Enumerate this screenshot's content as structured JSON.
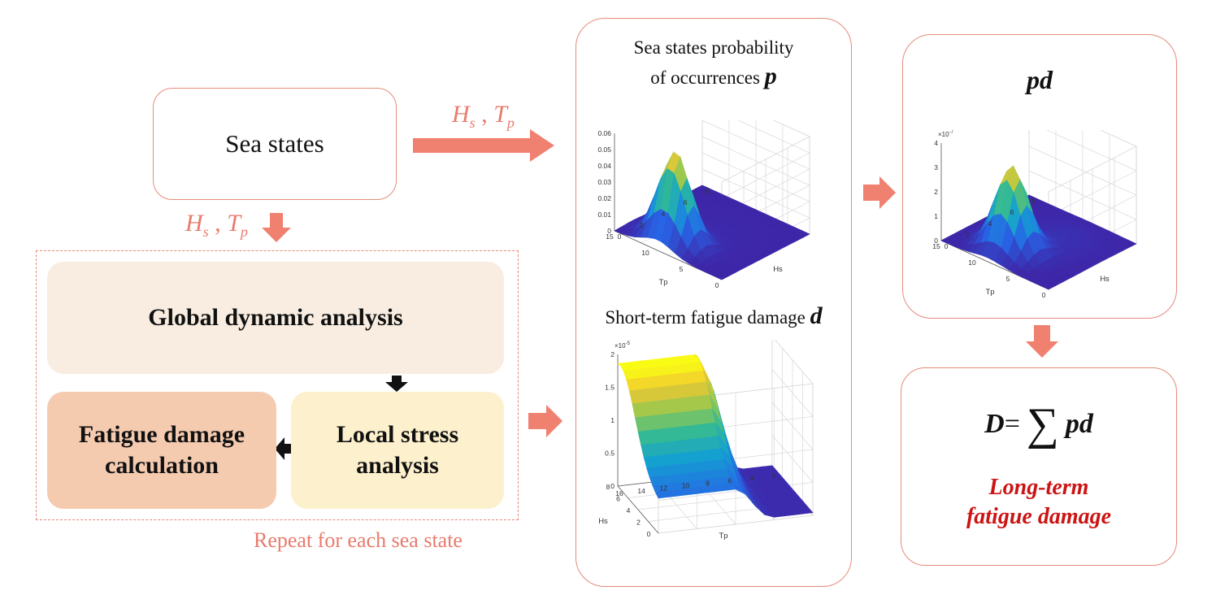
{
  "sea_states": {
    "label": "Sea states"
  },
  "hs_tp_label_top": {
    "H": "H",
    "s": "s",
    "sep": " , ",
    "T": "T",
    "p": "p"
  },
  "hs_tp_label_down": {
    "H": "H",
    "s": "s",
    "sep": " , ",
    "T": "T",
    "p": "p"
  },
  "loop": {
    "global": "Global dynamic analysis",
    "fatigue": [
      "Fatigue damage",
      "calculation"
    ],
    "local": [
      "Local stress",
      "analysis"
    ],
    "repeat": "Repeat for each sea state"
  },
  "middle": {
    "title_top_line1": "Sea states probability",
    "title_top_line2": "of occurrences",
    "title_top_symbol": "p",
    "title_bottom": "Short-term fatigue damage",
    "title_bottom_symbol": "d"
  },
  "right": {
    "pd_title": "pd",
    "formula": {
      "lhs": "D",
      "eq": " = ",
      "sum": "∑",
      "rhs": "pd"
    },
    "result_line1": "Long-term",
    "result_line2": "fatigue damage"
  },
  "charts": {
    "p_plot": {
      "zticks": [
        "0.06",
        "0.05",
        "0.04",
        "0.03",
        "0.02",
        "0.01",
        "0"
      ],
      "tp_ticks": [
        "15",
        "10",
        "5",
        "0"
      ],
      "hs_ticks": [
        "0",
        "2",
        "4",
        "6",
        "8"
      ],
      "xlabel": "Tp",
      "ylabel": "Hs"
    },
    "pd_plot": {
      "multiplier": "×10",
      "exponent": "-7",
      "zticks": [
        "4",
        "3",
        "2",
        "1",
        "0"
      ],
      "tp_ticks": [
        "15",
        "10",
        "5",
        "0"
      ],
      "hs_ticks": [
        "0",
        "2",
        "4",
        "6",
        "8"
      ],
      "xlabel": "Tp",
      "ylabel": "Hs"
    },
    "d_plot": {
      "multiplier": "×10",
      "exponent": "-5",
      "zticks": [
        "2",
        "1.5",
        "1",
        "0.5",
        "0"
      ],
      "hs_ticks": [
        "8",
        "6",
        "4",
        "2",
        "0"
      ],
      "tp_ticks": [
        "16",
        "14",
        "12",
        "10",
        "8",
        "6",
        "4",
        "2"
      ],
      "xlabel": "Tp",
      "ylabel": "Hs"
    }
  },
  "colors": {
    "accent_arrow": "#f08070",
    "box_border": "#e58b7a",
    "global_fill": "#f8ede0",
    "fatigue_fill": "#f5cbb0",
    "local_fill": "#fdf0cc",
    "result_red": "#cc1414",
    "surface_low": "#3e3aa8",
    "surface_high": "#f2e32a"
  }
}
